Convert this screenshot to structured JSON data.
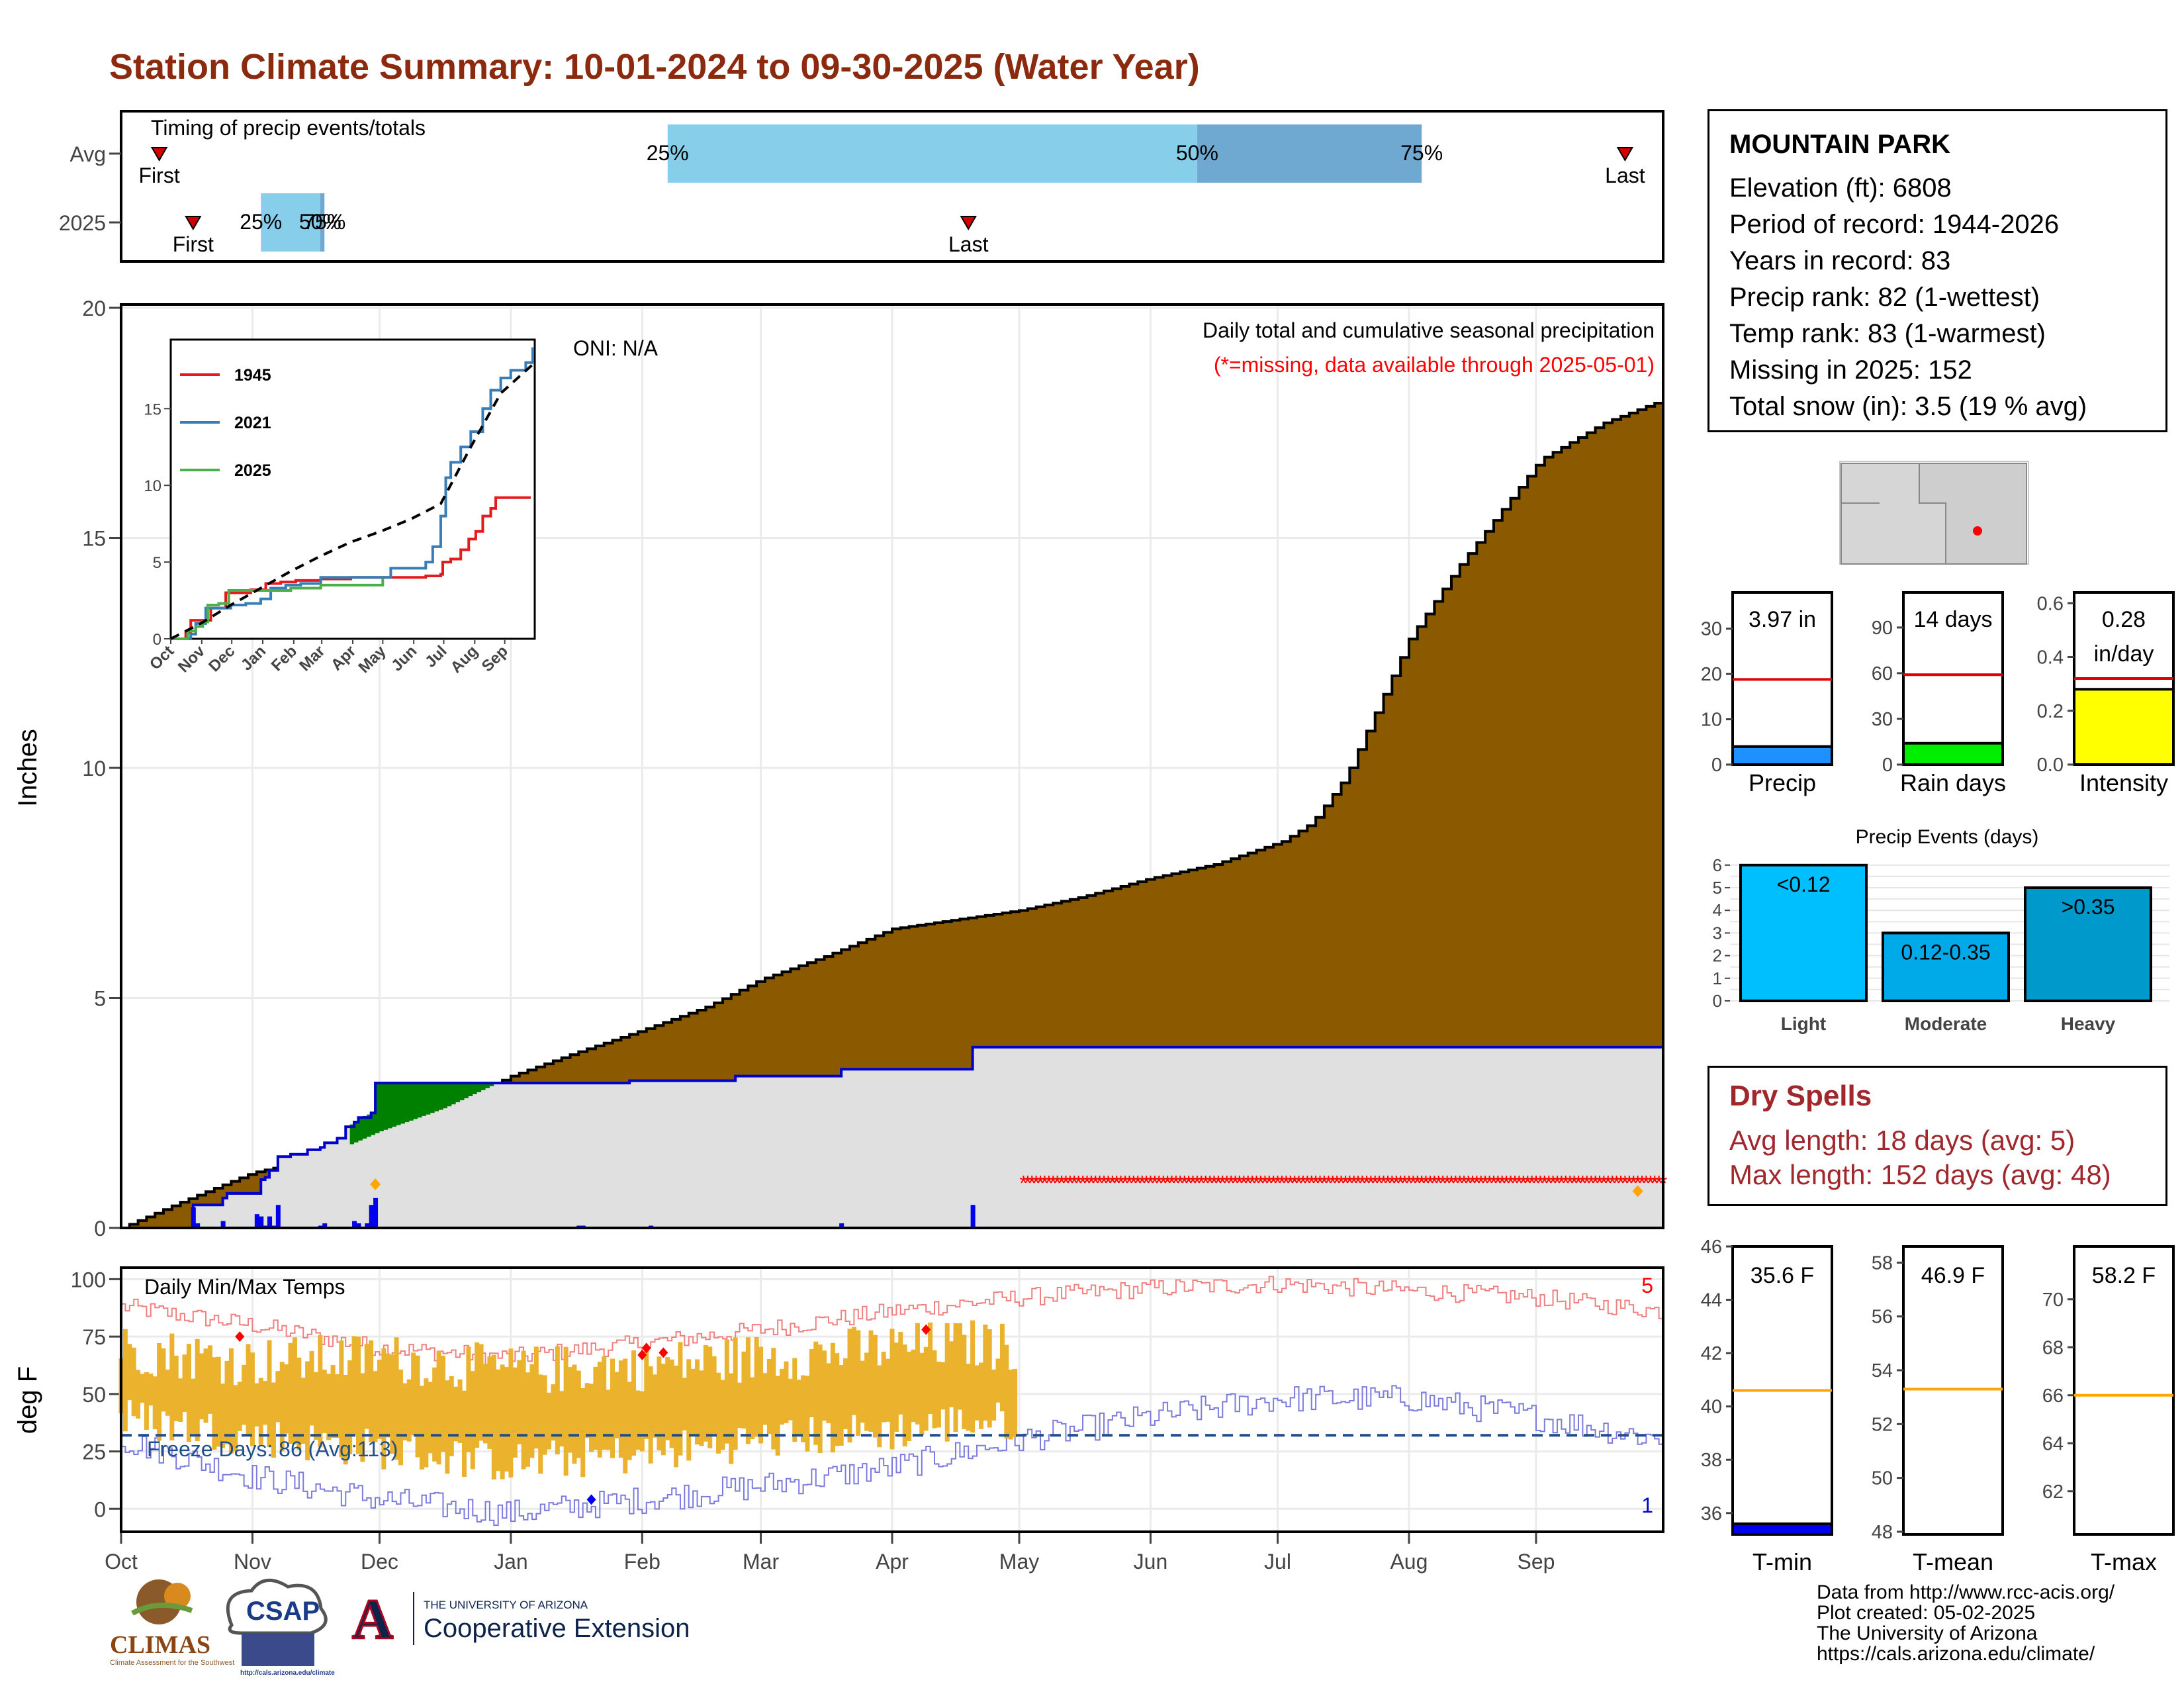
{
  "page": {
    "title": "Station Climate Summary: 10-01-2024 to 09-30-2025 (Water Year)"
  },
  "station": {
    "name": "MOUNTAIN PARK",
    "lines": [
      "Elevation (ft): 6808",
      "Period of record: 1944-2026",
      "Years in record: 83",
      "Precip rank: 82 (1-wettest)",
      "Temp rank: 83 (1-warmest)",
      "Missing in 2025: 152",
      "Total snow (in): 3.5 (19 % avg)"
    ]
  },
  "dry_spells": {
    "title": "Dry Spells",
    "avg_line": "Avg length: 18 days (avg: 5)",
    "max_line": "Max length: 152 days (avg: 48)"
  },
  "credits": [
    "Data from http://www.rcc-acis.org/",
    "Plot created: 05-02-2025",
    "The University of Arizona",
    "https://cals.arizona.edu/climate/"
  ],
  "logos": {
    "climas": "CLIMAS",
    "climas_sub": "Climate Assessment for the Southwest",
    "csap": "CSAP",
    "csap_url": "http://cals.arizona.edu/climate",
    "ua_small": "THE UNIVERSITY OF ARIZONA",
    "ua_big": "Cooperative Extension",
    "ua_letter": "A"
  },
  "colors": {
    "title": "#8b2a0e",
    "precip_fill": "#8b5a00",
    "current_precip_line": "#0000cc",
    "current_area": "#e0e0e0",
    "surplus": "#008000",
    "missing": "#ff0000",
    "temp_bar": "#ebb22e",
    "record_high": "#f08080",
    "record_low": "#7b7bdd",
    "freeze": "#1f4e8c",
    "light_blue": "#87ceeb",
    "mid_blue": "#6fa8d0",
    "gauge_blue": "#1e90ff",
    "gauge_green": "#00ee00",
    "gauge_yellow": "#ffff00",
    "event_light": "#00bfff",
    "event_mod": "#00a9e8",
    "event_heavy": "#0099cc",
    "tmin_fill": "#0000ee",
    "avg_line": "#ffa500",
    "dry_text": "#a0282d"
  },
  "chart_data": [
    {
      "id": "timing",
      "type": "bar",
      "title": "Timing of precip events/totals",
      "rows": [
        "Avg",
        "2025"
      ],
      "avg": {
        "first": "Oct 10",
        "q25": "Feb 7",
        "q50": "Jun 12",
        "q75": "Aug 4",
        "last": "Sep 22"
      },
      "y2025": {
        "first": "Oct 18",
        "q25": "Nov 3",
        "q50": "Nov 17",
        "q75": "Nov 18",
        "last": "Apr 19"
      },
      "first_label": "First",
      "last_label": "Last",
      "pct_labels": [
        "25%",
        "50%",
        "75%"
      ]
    },
    {
      "id": "precip",
      "type": "area",
      "title": "Daily total and cumulative seasonal precipitation",
      "subtitle": "(*=missing, data available through 2025-05-01)",
      "oni": "ONI: N/A",
      "ylabel": "Inches",
      "ylim": [
        0,
        20
      ],
      "yticks": [
        0,
        5,
        10,
        15,
        20
      ],
      "avg_cumulative": [
        [
          0,
          0
        ],
        [
          15,
          0.6
        ],
        [
          31,
          1.2
        ],
        [
          46,
          1.5
        ],
        [
          61,
          2.1
        ],
        [
          76,
          2.6
        ],
        [
          92,
          3.3
        ],
        [
          107,
          3.8
        ],
        [
          123,
          4.3
        ],
        [
          138,
          4.8
        ],
        [
          151,
          5.4
        ],
        [
          166,
          5.9
        ],
        [
          182,
          6.5
        ],
        [
          197,
          6.7
        ],
        [
          212,
          6.9
        ],
        [
          227,
          7.2
        ],
        [
          243,
          7.6
        ],
        [
          258,
          7.9
        ],
        [
          274,
          8.4
        ],
        [
          281,
          8.8
        ],
        [
          289,
          9.8
        ],
        [
          304,
          12.8
        ],
        [
          315,
          14.3
        ],
        [
          335,
          16.7
        ],
        [
          350,
          17.5
        ],
        [
          364,
          18.0
        ]
      ],
      "current_cumulative": [
        [
          0,
          0
        ],
        [
          17,
          0.5
        ],
        [
          24,
          0.65
        ],
        [
          25,
          0.75
        ],
        [
          32,
          0.75
        ],
        [
          33,
          1.05
        ],
        [
          34,
          1.1
        ],
        [
          35,
          1.25
        ],
        [
          37,
          1.55
        ],
        [
          40,
          1.6
        ],
        [
          44,
          1.7
        ],
        [
          47,
          1.75
        ],
        [
          48,
          1.85
        ],
        [
          51,
          1.95
        ],
        [
          53,
          2.2
        ],
        [
          55,
          2.3
        ],
        [
          56,
          2.4
        ],
        [
          59,
          2.5
        ],
        [
          60,
          3.15
        ],
        [
          120,
          3.2
        ],
        [
          145,
          3.3
        ],
        [
          170,
          3.45
        ],
        [
          200,
          3.45
        ],
        [
          201,
          3.93
        ],
        [
          364,
          3.93
        ]
      ],
      "daily_precip": [
        [
          17,
          0.45
        ],
        [
          18,
          0.1
        ],
        [
          24,
          0.15
        ],
        [
          32,
          0.3
        ],
        [
          33,
          0.25
        ],
        [
          34,
          0.05
        ],
        [
          35,
          0.25
        ],
        [
          36,
          0.05
        ],
        [
          37,
          0.5
        ],
        [
          47,
          0.05
        ],
        [
          48,
          0.1
        ],
        [
          55,
          0.15
        ],
        [
          56,
          0.1
        ],
        [
          58,
          0.1
        ],
        [
          59,
          0.5
        ],
        [
          60,
          0.65
        ],
        [
          108,
          0.05
        ],
        [
          109,
          0.05
        ],
        [
          125,
          0.05
        ],
        [
          170,
          0.1
        ],
        [
          201,
          0.5
        ]
      ],
      "snow_markers": [
        [
          60,
          0.95
        ],
        [
          358,
          0.8
        ]
      ],
      "missing_range": [
        213,
        364
      ],
      "missing_level": 1.0
    },
    {
      "id": "inset_years",
      "type": "line",
      "ylim": [
        0,
        19.5
      ],
      "yticks": [
        0,
        5,
        10,
        15
      ],
      "xticks": [
        "Oct",
        "Nov",
        "Dec",
        "Jan",
        "Feb",
        "Mar",
        "Apr",
        "May",
        "Jun",
        "Jul",
        "Aug",
        "Sep"
      ],
      "series": [
        {
          "name": "1945",
          "values": [
            [
              0,
              0
            ],
            [
              15,
              0.4
            ],
            [
              20,
              1.2
            ],
            [
              40,
              2.0
            ],
            [
              55,
              3.0
            ],
            [
              80,
              3.2
            ],
            [
              95,
              3.6
            ],
            [
              110,
              3.7
            ],
            [
              125,
              3.8
            ],
            [
              150,
              3.9
            ],
            [
              180,
              4.0
            ],
            [
              200,
              4.0
            ],
            [
              220,
              4.0
            ],
            [
              255,
              4.1
            ],
            [
              270,
              4.2
            ],
            [
              272,
              5.0
            ],
            [
              280,
              5.2
            ],
            [
              290,
              5.8
            ],
            [
              298,
              6.5
            ],
            [
              305,
              7.0
            ],
            [
              312,
              8.0
            ],
            [
              320,
              8.5
            ],
            [
              325,
              9.2
            ],
            [
              335,
              9.2
            ],
            [
              360,
              9.2
            ]
          ]
        },
        {
          "name": "2021",
          "values": [
            [
              0,
              0
            ],
            [
              20,
              0.3
            ],
            [
              25,
              1.0
            ],
            [
              35,
              2.0
            ],
            [
              60,
              2.2
            ],
            [
              75,
              2.3
            ],
            [
              90,
              2.6
            ],
            [
              100,
              3.3
            ],
            [
              115,
              3.5
            ],
            [
              130,
              3.6
            ],
            [
              150,
              4.0
            ],
            [
              180,
              4.0
            ],
            [
              200,
              4.0
            ],
            [
              220,
              4.6
            ],
            [
              255,
              5.0
            ],
            [
              262,
              6.0
            ],
            [
              270,
              8.0
            ],
            [
              275,
              10.5
            ],
            [
              280,
              11.5
            ],
            [
              290,
              12.5
            ],
            [
              300,
              13.5
            ],
            [
              312,
              15.0
            ],
            [
              320,
              16.2
            ],
            [
              330,
              17.0
            ],
            [
              340,
              17.5
            ],
            [
              355,
              18.0
            ],
            [
              362,
              19.0
            ]
          ]
        },
        {
          "name": "2025",
          "values": [
            [
              0,
              0
            ],
            [
              17,
              0.5
            ],
            [
              25,
              0.8
            ],
            [
              32,
              1.1
            ],
            [
              37,
              2.2
            ],
            [
              48,
              2.3
            ],
            [
              58,
              3.15
            ],
            [
              120,
              3.3
            ],
            [
              150,
              3.5
            ],
            [
              200,
              3.5
            ],
            [
              212,
              3.93
            ]
          ]
        },
        {
          "name": "",
          "values": [
            [
              0,
              0
            ],
            [
              30,
              1.0
            ],
            [
              60,
              2.2
            ],
            [
              90,
              3.3
            ],
            [
              120,
              4.4
            ],
            [
              150,
              5.4
            ],
            [
              180,
              6.3
            ],
            [
              210,
              7.0
            ],
            [
              240,
              7.8
            ],
            [
              270,
              8.8
            ],
            [
              300,
              12.5
            ],
            [
              330,
              16.0
            ],
            [
              364,
              18.0
            ]
          ]
        }
      ]
    },
    {
      "id": "gauge_precip",
      "type": "bar",
      "xlabel": "Precip",
      "value": 3.97,
      "avg": 18.8,
      "ylim": [
        0,
        38
      ],
      "yticks": [
        0,
        10,
        20,
        30
      ],
      "label_line1": "3.97 in",
      "label_line2": ""
    },
    {
      "id": "gauge_days",
      "type": "bar",
      "xlabel": "Rain days",
      "value": 14,
      "avg": 59,
      "ylim": [
        0,
        113
      ],
      "yticks": [
        0,
        30,
        60,
        90
      ],
      "label_line1": "14 days",
      "label_line2": ""
    },
    {
      "id": "gauge_intensity",
      "type": "bar",
      "xlabel": "Intensity",
      "value": 0.28,
      "avg": 0.32,
      "ylim": [
        0,
        0.64
      ],
      "yticks": [
        0.0,
        0.2,
        0.4,
        0.6
      ],
      "tick_labels": [
        "0.0",
        "0.2",
        "0.4",
        "0.6"
      ],
      "label_line1": "0.28",
      "label_line2": "in/day"
    },
    {
      "id": "events",
      "type": "bar",
      "title": "Precip Events (days)",
      "categories": [
        "Light",
        "Moderate",
        "Heavy"
      ],
      "values": [
        6,
        3,
        5
      ],
      "bar_labels": [
        "<0.12",
        "0.12-0.35",
        ">0.35"
      ],
      "ylim": [
        0,
        6.2
      ],
      "yticks": [
        0,
        1,
        2,
        3,
        4,
        5,
        6
      ]
    },
    {
      "id": "temps",
      "type": "bar",
      "title": "Daily Min/Max Temps",
      "ylabel": "deg F",
      "ylim": [
        -10,
        105
      ],
      "yticks": [
        0,
        25,
        50,
        75,
        100
      ],
      "xticks": [
        "Oct",
        "Nov",
        "Dec",
        "Jan",
        "Feb",
        "Mar",
        "Apr",
        "May",
        "Jun",
        "Jul",
        "Aug",
        "Sep"
      ],
      "freeze_label": "Freeze Days: 86 (Avg:113)",
      "freeze_temp": 32,
      "record_high_count": "5",
      "record_low_count": "1",
      "data_days": 212,
      "max_anchor": [
        [
          0,
          70
        ],
        [
          30,
          64
        ],
        [
          61,
          66
        ],
        [
          92,
          60
        ],
        [
          123,
          62
        ],
        [
          151,
          66
        ],
        [
          182,
          70
        ],
        [
          200,
          72
        ],
        [
          212,
          70
        ]
      ],
      "min_anchor": [
        [
          0,
          40
        ],
        [
          30,
          32
        ],
        [
          61,
          26
        ],
        [
          92,
          20
        ],
        [
          123,
          24
        ],
        [
          151,
          30
        ],
        [
          182,
          34
        ],
        [
          200,
          38
        ],
        [
          212,
          38
        ]
      ],
      "recordhigh_anchor": [
        [
          0,
          88
        ],
        [
          31,
          80
        ],
        [
          61,
          70
        ],
        [
          92,
          66
        ],
        [
          123,
          72
        ],
        [
          151,
          78
        ],
        [
          182,
          86
        ],
        [
          212,
          92
        ],
        [
          243,
          96
        ],
        [
          273,
          98
        ],
        [
          304,
          95
        ],
        [
          334,
          92
        ],
        [
          364,
          86
        ]
      ],
      "recordlow_anchor": [
        [
          0,
          30
        ],
        [
          31,
          14
        ],
        [
          61,
          4
        ],
        [
          92,
          -2
        ],
        [
          123,
          4
        ],
        [
          151,
          10
        ],
        [
          182,
          18
        ],
        [
          212,
          30
        ],
        [
          243,
          40
        ],
        [
          273,
          48
        ],
        [
          304,
          48
        ],
        [
          334,
          40
        ],
        [
          364,
          30
        ]
      ],
      "record_high_points": [
        [
          28,
          75
        ],
        [
          123,
          67
        ],
        [
          124,
          70
        ],
        [
          128,
          68
        ],
        [
          190,
          78
        ]
      ],
      "record_low_points": [
        [
          111,
          4
        ]
      ]
    },
    {
      "id": "gauge_tmin",
      "type": "bar",
      "xlabel": "T-min",
      "value": 35.6,
      "avg": 40.6,
      "ylim": [
        35.2,
        46
      ],
      "yticks": [
        36,
        38,
        40,
        42,
        44,
        46
      ],
      "label_line1": "35.6 F"
    },
    {
      "id": "gauge_tmean",
      "type": "bar",
      "xlabel": "T-mean",
      "value": 46.9,
      "avg": 53.3,
      "ylim": [
        47.9,
        58.6
      ],
      "yticks": [
        48,
        50,
        52,
        54,
        56,
        58
      ],
      "label_line1": "46.9 F"
    },
    {
      "id": "gauge_tmax",
      "type": "bar",
      "xlabel": "T-max",
      "value": 58.2,
      "avg": 66.0,
      "ylim": [
        60.2,
        72.2
      ],
      "yticks": [
        62,
        64,
        66,
        68,
        70
      ],
      "label_line1": "58.2 F"
    }
  ]
}
